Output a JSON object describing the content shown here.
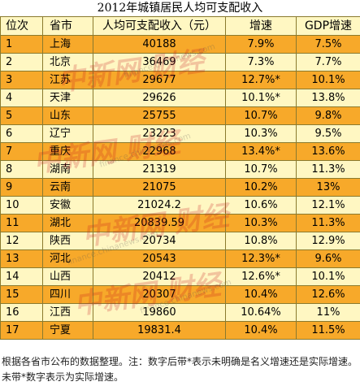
{
  "title": "2012年城镇居民人均可支配收入",
  "headers": {
    "rank": "位次",
    "province": "省市",
    "income": "人均可支配收入（元）",
    "growth": "增速",
    "gdp": "GDP增速"
  },
  "rows": [
    {
      "rank": "1",
      "province": "上海",
      "income": "40188",
      "growth": "7.9%",
      "gdp": "7.5%"
    },
    {
      "rank": "2",
      "province": "北京",
      "income": "36469",
      "growth": "7.3%",
      "gdp": "7.7%"
    },
    {
      "rank": "3",
      "province": "江苏",
      "income": "29677",
      "growth": "12.7%*",
      "gdp": "10.1%"
    },
    {
      "rank": "4",
      "province": "天津",
      "income": "29626",
      "growth": "10.1%*",
      "gdp": "13.8%"
    },
    {
      "rank": "5",
      "province": "山东",
      "income": "25755",
      "growth": "10.7%",
      "gdp": "9.8%"
    },
    {
      "rank": "6",
      "province": "辽宁",
      "income": "23223",
      "growth": "10.3%",
      "gdp": "9.5%"
    },
    {
      "rank": "7",
      "province": "重庆",
      "income": "22968",
      "growth": "13.4%*",
      "gdp": "13.6%"
    },
    {
      "rank": "8",
      "province": "湖南",
      "income": "21319",
      "growth": "10.7%",
      "gdp": "11.3%"
    },
    {
      "rank": "9",
      "province": "云南",
      "income": "21075",
      "growth": "10.2%",
      "gdp": "13%"
    },
    {
      "rank": "10",
      "province": "安徽",
      "income": "21024.2",
      "growth": "10.6%",
      "gdp": "12.1%"
    },
    {
      "rank": "11",
      "province": "湖北",
      "income": "20839.59",
      "growth": "10.3%",
      "gdp": "11.3%"
    },
    {
      "rank": "12",
      "province": "陕西",
      "income": "20734",
      "growth": "10.8%",
      "gdp": "12.9%"
    },
    {
      "rank": "13",
      "province": "河北",
      "income": "20543",
      "growth": "12.3%*",
      "gdp": "9.6%"
    },
    {
      "rank": "14",
      "province": "山西",
      "income": "20412",
      "growth": "12.6%*",
      "gdp": "10.1%"
    },
    {
      "rank": "15",
      "province": "四川",
      "income": "20307",
      "growth": "10.4%",
      "gdp": "12.6%"
    },
    {
      "rank": "16",
      "province": "江西",
      "income": "19860",
      "growth": "10.64%",
      "gdp": "11%"
    },
    {
      "rank": "17",
      "province": "宁夏",
      "income": "19831.4",
      "growth": "10.4%",
      "gdp": "11.5%"
    }
  ],
  "note": "根据各省市公布的数据整理。注：数字后带*表示未明确是名义增速还是实际增速。未带*数字表示为实际增速。",
  "watermark": {
    "brand": "中新网 财经",
    "url": "finance.chinanews.com"
  }
}
